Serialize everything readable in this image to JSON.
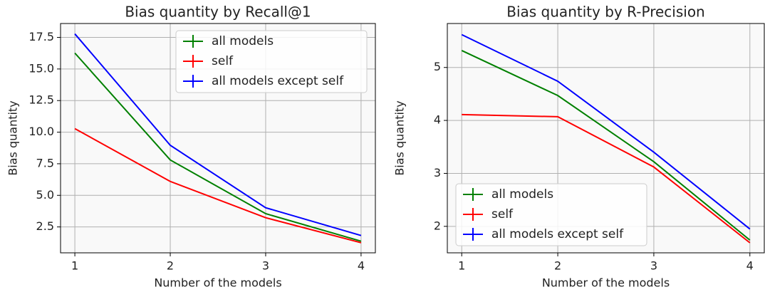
{
  "chart_data": [
    {
      "type": "line",
      "title": "Bias quantity by Recall@1",
      "xlabel": "Number of the models",
      "ylabel": "Bias quantity",
      "x": [
        1,
        2,
        3,
        4
      ],
      "series": [
        {
          "name": "all models",
          "color": "#008000",
          "values": [
            16.26,
            7.8,
            3.55,
            1.37
          ]
        },
        {
          "name": "self",
          "color": "#ff0000",
          "values": [
            10.28,
            6.1,
            3.23,
            1.25
          ]
        },
        {
          "name": "all models except self",
          "color": "#0000ff",
          "values": [
            17.78,
            8.96,
            4.02,
            1.82
          ]
        }
      ],
      "xlim": [
        0.85,
        4.15
      ],
      "xticks": [
        1,
        2,
        3,
        4
      ],
      "ylim": [
        0.45,
        18.6
      ],
      "yticks": [
        2.5,
        {
          "value": 5,
          "label": "5.0"
        },
        7.5,
        {
          "value": 10,
          "label": "10.0"
        },
        12.5,
        {
          "value": 15,
          "label": "15.0"
        },
        17.5
      ],
      "grid": true,
      "legend": "upper right"
    },
    {
      "type": "line",
      "title": "Bias quantity by R-Precision",
      "xlabel": "Number of the models",
      "ylabel": "Bias quantity",
      "x": [
        1,
        2,
        3,
        4
      ],
      "series": [
        {
          "name": "all models",
          "color": "#008000",
          "values": [
            5.32,
            4.47,
            3.22,
            1.74
          ]
        },
        {
          "name": "self",
          "color": "#ff0000",
          "values": [
            4.11,
            4.07,
            3.12,
            1.69
          ]
        },
        {
          "name": "all models except self",
          "color": "#0000ff",
          "values": [
            5.62,
            4.74,
            3.4,
            1.95
          ]
        }
      ],
      "xlim": [
        0.85,
        4.15
      ],
      "xticks": [
        1,
        2,
        3,
        4
      ],
      "ylim": [
        1.5,
        5.83
      ],
      "yticks": [
        2,
        3,
        4,
        5
      ],
      "grid": true,
      "legend": "lower left"
    }
  ]
}
